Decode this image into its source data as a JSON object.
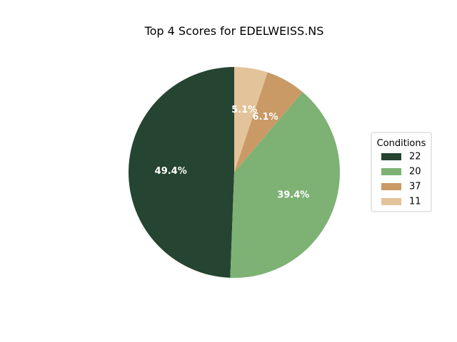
{
  "chart_data": {
    "type": "pie",
    "title": "Top 4 Scores for EDELWEISS.NS",
    "legend_title": "Conditions",
    "legend_position": "right",
    "start_angle_deg": 90,
    "direction": "counterclockwise",
    "slices": [
      {
        "label": "22",
        "percent": 49.4,
        "pct_text": "49.4%",
        "color": "#254431"
      },
      {
        "label": "20",
        "percent": 39.4,
        "pct_text": "39.4%",
        "color": "#7db274"
      },
      {
        "label": "37",
        "percent": 6.1,
        "pct_text": "6.1%",
        "color": "#c99966"
      },
      {
        "label": "11",
        "percent": 5.1,
        "pct_text": "5.1%",
        "color": "#e3c39a"
      }
    ]
  }
}
